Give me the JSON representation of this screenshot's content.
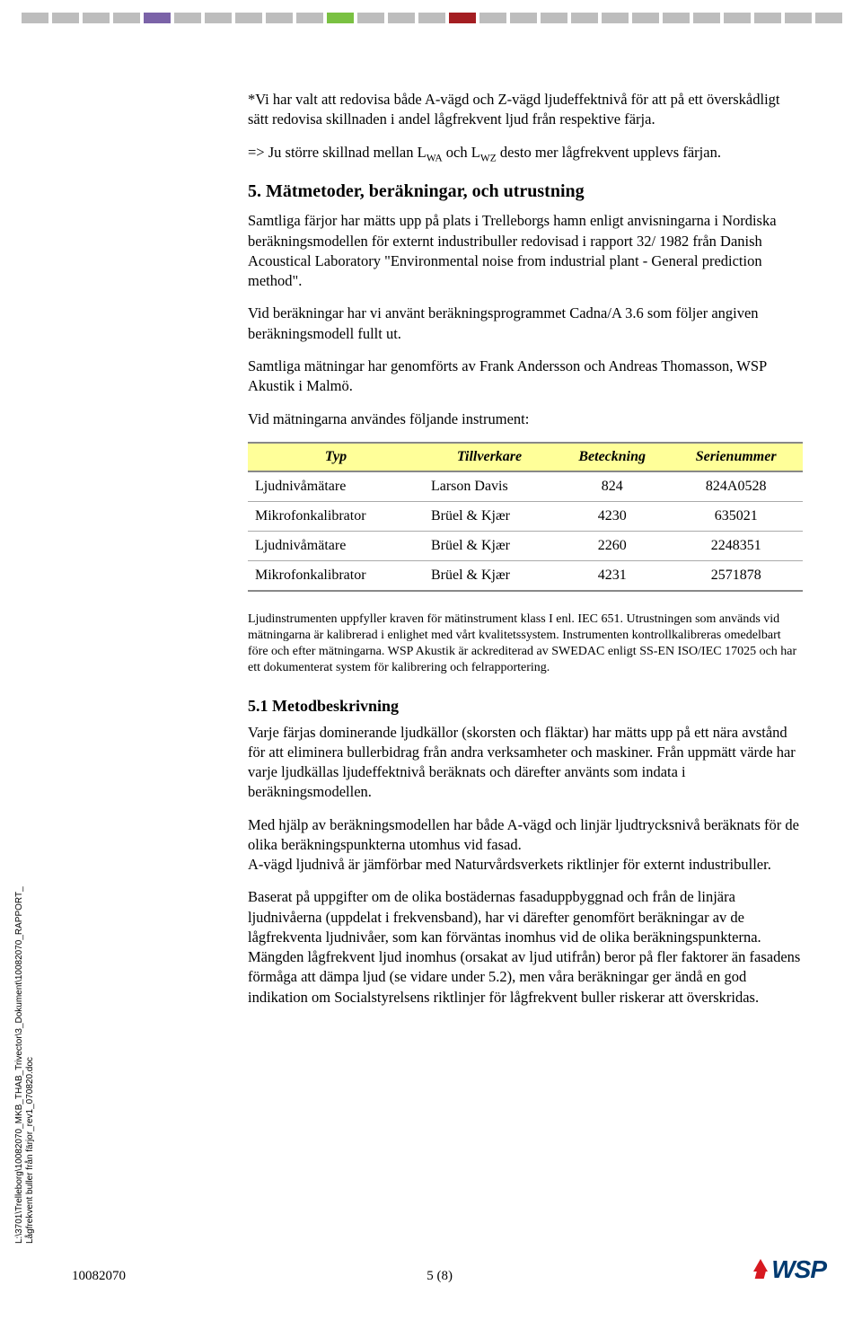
{
  "header": {
    "strip_colors": [
      "#bdbdbd",
      "#bdbdbd",
      "#bdbdbd",
      "#bdbdbd",
      "#7b63a8",
      "#bdbdbd",
      "#bdbdbd",
      "#bdbdbd",
      "#bdbdbd",
      "#bdbdbd",
      "#7ac142",
      "#bdbdbd",
      "#bdbdbd",
      "#bdbdbd",
      "#a41e22",
      "#bdbdbd",
      "#bdbdbd",
      "#bdbdbd",
      "#bdbdbd",
      "#bdbdbd",
      "#bdbdbd",
      "#bdbdbd",
      "#bdbdbd",
      "#bdbdbd",
      "#bdbdbd",
      "#bdbdbd",
      "#bdbdbd"
    ]
  },
  "body": {
    "note1a": " *Vi har valt att redovisa både A-vägd och Z-vägd ljudeffektnivå för att på ett överskådligt sätt redovisa skillnaden i andel lågfrekvent ljud från respektive färja.",
    "note1b_pre": "=> Ju större skillnad mellan L",
    "note1b_sub1": "WA",
    "note1b_mid": " och L",
    "note1b_sub2": "WZ",
    "note1b_post": " desto mer lågfrekvent upplevs färjan.",
    "h5": "5. Mätmetoder, beräkningar, och utrustning",
    "p5a": "Samtliga färjor har mätts upp på plats i Trelleborgs hamn enligt anvisningarna i Nordiska beräkningsmodellen för externt industribuller redovisad i rapport 32/ 1982 från Danish Acoustical Laboratory \"Environmental noise from industrial plant - General prediction method\".",
    "p5b": "Vid beräkningar har vi använt beräkningsprogrammet Cadna/A 3.6 som följer angiven beräkningsmodell fullt ut.",
    "p5c": "Samtliga mätningar har genomförts av Frank Andersson och Andreas Thomasson, WSP Akustik i Malmö.",
    "p5d": "Vid mätningarna användes följande instrument:",
    "table": {
      "columns": [
        "Typ",
        "Tillverkare",
        "Beteckning",
        "Serienummer"
      ],
      "rows": [
        [
          "Ljudnivåmätare",
          "Larson Davis",
          "824",
          "824A0528"
        ],
        [
          "Mikrofonkalibrator",
          "Brüel & Kjær",
          "4230",
          "635021"
        ],
        [
          "Ljudnivåmätare",
          "Brüel & Kjær",
          "2260",
          "2248351"
        ],
        [
          "Mikrofonkalibrator",
          "Brüel & Kjær",
          "4231",
          "2571878"
        ]
      ],
      "header_bg": "#ffff99",
      "border_color": "#888888"
    },
    "p5e": "Ljudinstrumenten uppfyller kraven för mätinstrument klass I enl. IEC 651. Utrustningen som används vid mätningarna är kalibrerad i enlighet med vårt kvalitetssystem. Instrumenten kontrollkalibreras omedelbart före och efter mätningarna. WSP Akustik är ackrediterad av SWEDAC enligt SS-EN ISO/IEC 17025 och har ett dokumenterat system för kalibrering och felrapportering.",
    "h51": "5.1 Metodbeskrivning",
    "p51a": "Varje färjas dominerande ljudkällor (skorsten och fläktar) har mätts upp på ett nära avstånd för att eliminera bullerbidrag från andra verksamheter och maskiner. Från uppmätt värde har varje ljudkällas ljudeffektnivå beräknats och därefter använts som indata i beräkningsmodellen.",
    "p51b": "Med hjälp av beräkningsmodellen har både A-vägd och linjär ljudtrycksnivå beräknats för de olika beräkningspunkterna utomhus vid fasad.\nA-vägd ljudnivå är jämförbar med Naturvårdsverkets riktlinjer för externt industribuller.",
    "p51c": "Baserat på uppgifter om de olika bostädernas fasaduppbyggnad och från de linjära ljudnivåerna (uppdelat i frekvensband), har vi därefter genomfört beräkningar av de lågfrekventa ljudnivåer, som kan förväntas inomhus vid de olika beräkningspunkterna.\nMängden lågfrekvent ljud inomhus (orsakat av ljud utifrån) beror på fler faktorer än fasadens förmåga att dämpa ljud (se vidare under 5.2),  men våra beräkningar ger ändå en god indikation om Socialstyrelsens riktlinjer för lågfrekvent buller riskerar att överskridas."
  },
  "side": {
    "line1": "L:\\3701\\Trelleborg\\10082070_MKB_THAB_Trivector\\3_Dokument\\10082070_RAPPORT_",
    "line2": "Lågfrekvent buller från färjor_rev1_070820.doc"
  },
  "footer": {
    "docnum": "10082070",
    "page": "5 (8)",
    "logo_text": "WSP"
  }
}
